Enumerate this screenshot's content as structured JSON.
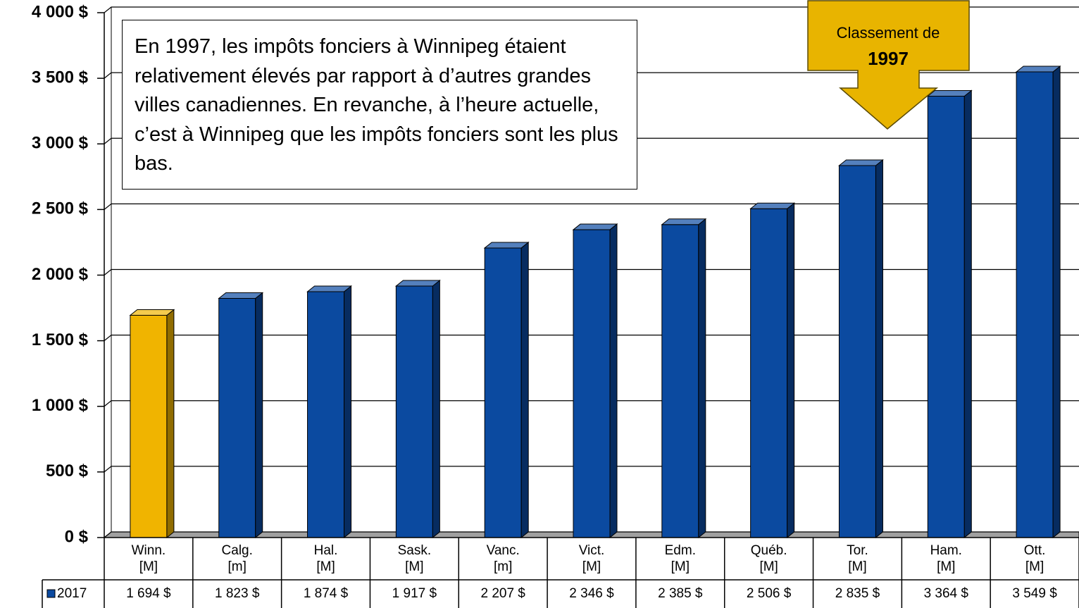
{
  "chart_data": {
    "type": "bar3d",
    "categories": [
      [
        "Winn.",
        "[M]"
      ],
      [
        "Calg.",
        "[m]"
      ],
      [
        "Hal.",
        "[M]"
      ],
      [
        "Sask.",
        "[M]"
      ],
      [
        "Vanc.",
        "[m]"
      ],
      [
        "Vict.",
        "[M]"
      ],
      [
        "Edm.",
        "[M]"
      ],
      [
        "Québ.",
        "[M]"
      ],
      [
        "Tor.",
        "[M]"
      ],
      [
        "Ham.",
        "[M]"
      ],
      [
        "Ott.",
        "[M]"
      ]
    ],
    "series": [
      {
        "name": "2017",
        "color": "#0b4aa0",
        "colors": [
          "#f0b400",
          "#0b4aa0",
          "#0b4aa0",
          "#0b4aa0",
          "#0b4aa0",
          "#0b4aa0",
          "#0b4aa0",
          "#0b4aa0",
          "#0b4aa0",
          "#0b4aa0",
          "#0b4aa0"
        ],
        "values": [
          1694,
          1823,
          1874,
          1917,
          2207,
          2346,
          2385,
          2506,
          2835,
          3364,
          3549
        ],
        "value_labels": [
          "1 694 $",
          "1 823 $",
          "1 874 $",
          "1 917 $",
          "2 207 $",
          "2 346 $",
          "2 385 $",
          "2 506 $",
          "2 835 $",
          "3 364 $",
          "3 549 $"
        ]
      }
    ],
    "ylim": [
      0,
      4000
    ],
    "yticks": [
      {
        "value": 0,
        "label": "0 $"
      },
      {
        "value": 500,
        "label": "500 $"
      },
      {
        "value": 1000,
        "label": "1 000 $"
      },
      {
        "value": 1500,
        "label": "1 500 $"
      },
      {
        "value": 2000,
        "label": "2 000 $"
      },
      {
        "value": 2500,
        "label": "2 500 $"
      },
      {
        "value": 3000,
        "label": "3 000 $"
      },
      {
        "value": 3500,
        "label": "3 500 $"
      },
      {
        "value": 4000,
        "label": "4 000 $"
      }
    ],
    "grid": true,
    "annotations": {
      "note": "En 1997, les impôts fonciers à Winnipeg étaient relativement élevés par rapport à d’autres grandes villes canadiennes. En revanche, à l’heure actuelle, c’est à Winnipeg que les impôts fonciers sont les plus bas.",
      "callout": [
        "Classement de",
        "1997"
      ]
    }
  }
}
